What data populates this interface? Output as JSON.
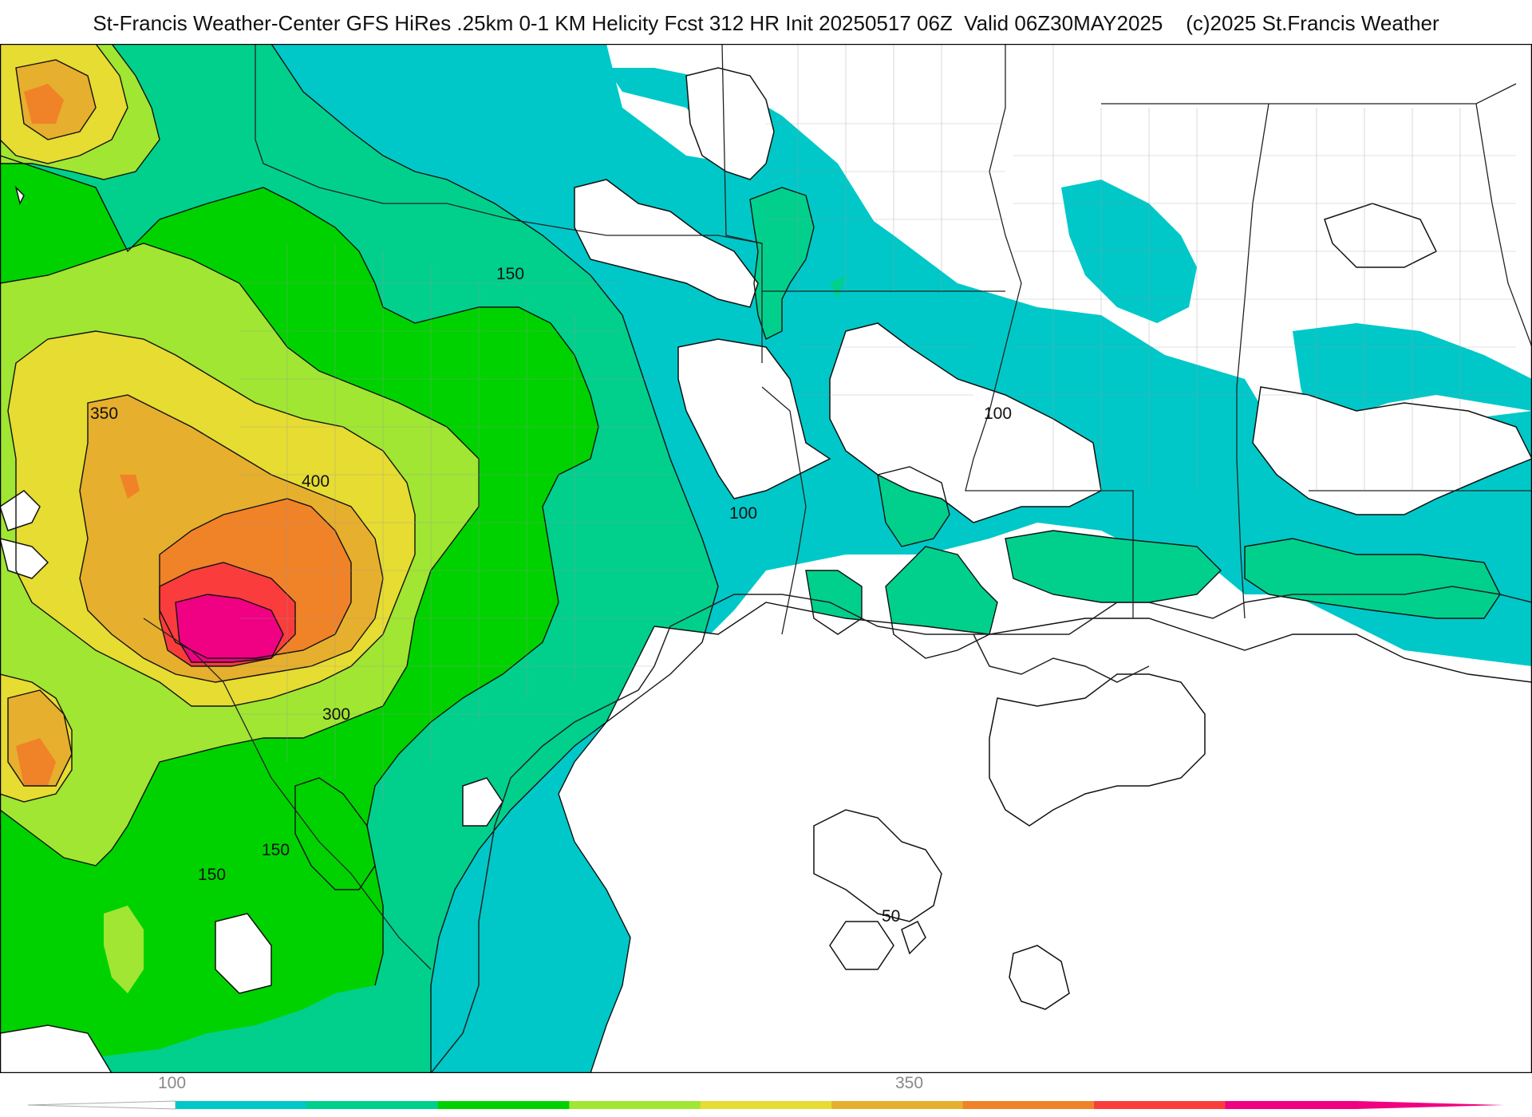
{
  "header": {
    "title": "St-Francis Weather-Center GFS HiRes .25km 0-1 KM Helicity Fcst 312 HR Init 20250517 06Z  Valid 06Z30MAY2025    (c)2025 St.Francis Weather"
  },
  "map": {
    "field": "0-1 KM Helicity",
    "contour_labels": [
      {
        "id": "l150a",
        "text": "150"
      },
      {
        "id": "l350",
        "text": "350"
      },
      {
        "id": "l400",
        "text": "400"
      },
      {
        "id": "l300",
        "text": "300"
      },
      {
        "id": "l100a",
        "text": "100"
      },
      {
        "id": "l100b",
        "text": "100"
      },
      {
        "id": "l150b",
        "text": "150"
      },
      {
        "id": "l150c",
        "text": "150"
      },
      {
        "id": "l50",
        "text": "50"
      }
    ]
  },
  "colorbar": {
    "tick_labels": [
      "100",
      "350"
    ],
    "colors": [
      "#00c8c8",
      "#00d08c",
      "#00d200",
      "#a0e632",
      "#e6dc32",
      "#e6af2d",
      "#f08228",
      "#fa3c3c",
      "#f00082"
    ]
  },
  "colors": {
    "c100": "#00c8c8",
    "c150": "#00d08c",
    "c200": "#00d200",
    "c250": "#a0e632",
    "c300": "#e6dc32",
    "c350": "#e6af2d",
    "c400": "#f08228",
    "c450": "#fa3c3c",
    "c500": "#f00082"
  }
}
